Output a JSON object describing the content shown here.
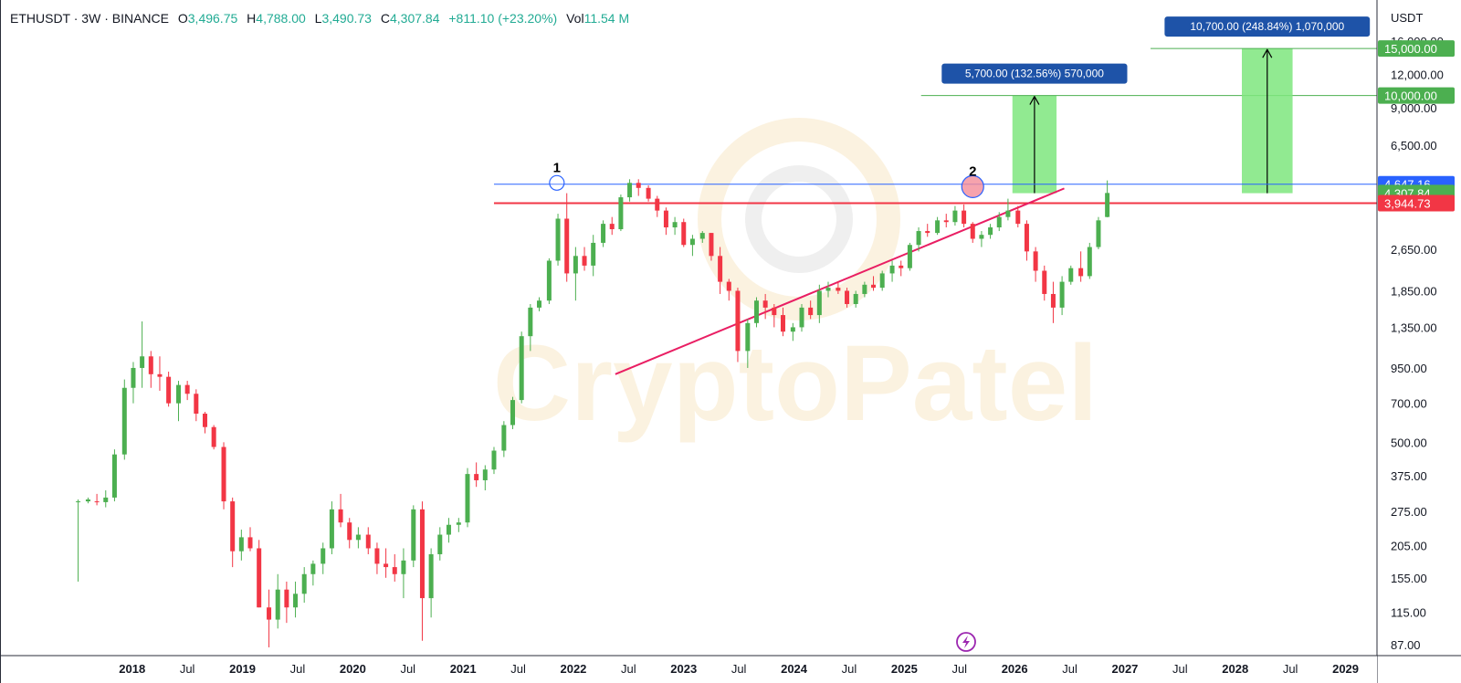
{
  "header": {
    "symbol": "ETHUSDT · 3W · BINANCE",
    "open_label": "O",
    "open": "3,496.75",
    "high_label": "H",
    "high": "4,788.00",
    "low_label": "L",
    "low": "3,490.73",
    "close_label": "C",
    "close": "4,307.84",
    "change": "+811.10 (+23.20%)",
    "vol_label": "Vol",
    "vol": "11.54 M"
  },
  "watermark": "CryptoPatel",
  "colors": {
    "up": "#4caf50",
    "down": "#f23645",
    "blue_line": "#2962ff",
    "red_line": "#f23645",
    "trend_line": "#e91e63",
    "target_fill": "#7ee67e",
    "label_blue": "#1e53a8",
    "label_green": "#4caf50"
  },
  "chart_data": {
    "type": "candlestick",
    "title": "ETHUSDT · 3W · BINANCE",
    "yscale": "log",
    "y_unit": "USDT",
    "y_ticks": [
      87,
      115,
      155,
      205,
      275,
      375,
      500,
      700,
      950,
      1350,
      1850,
      2650,
      6500,
      9000,
      12000,
      16000
    ],
    "y_tick_labels": [
      "87.00",
      "115.00",
      "155.00",
      "205.00",
      "275.00",
      "375.00",
      "500.00",
      "700.00",
      "950.00",
      "1,350.00",
      "1,850.00",
      "2,650.00",
      "6,500.00",
      "9,000.00",
      "12,000.00",
      "16,000.00"
    ],
    "x_ticks": [
      "2018",
      "Jul",
      "2019",
      "Jul",
      "2020",
      "Jul",
      "2021",
      "Jul",
      "2022",
      "Jul",
      "2023",
      "Jul",
      "2024",
      "Jul",
      "2025",
      "Jul",
      "2026",
      "Jul",
      "2027",
      "Jul",
      "2028",
      "Jul",
      "2029"
    ],
    "x_range": [
      2017.55,
      2029.3
    ],
    "price_labels": [
      {
        "text": "15,000.00",
        "value": 15000,
        "kind": "green"
      },
      {
        "text": "10,000.00",
        "value": 10000,
        "kind": "green"
      },
      {
        "text": "4,647.16",
        "value": 4647.16,
        "kind": "blue"
      },
      {
        "text": "4,307.84",
        "value": 4307.84,
        "kind": "green"
      },
      {
        "text": "3,944.73",
        "value": 3944.73,
        "kind": "red"
      }
    ],
    "horizontal_lines": [
      {
        "name": "resistance-top",
        "value": 4647,
        "color": "blue",
        "from": 2021.28
      },
      {
        "name": "resistance",
        "value": 3945,
        "color": "red",
        "from": 2021.28
      }
    ],
    "trendline": {
      "from": [
        2022.38,
        900
      ],
      "to": [
        2026.45,
        4480
      ]
    },
    "pivots": [
      {
        "label": "1",
        "x": 2021.85,
        "y": 4700
      },
      {
        "label": "2",
        "x": 2025.62,
        "y": 4550
      }
    ],
    "targets": [
      {
        "text": "5,700.00 (132.56%) 570,000",
        "x0": 2025.98,
        "x1": 2026.38,
        "base": 4300,
        "top": 10000
      },
      {
        "text": "10,700.00 (248.84%) 1,070,000",
        "x0": 2028.06,
        "x1": 2028.52,
        "base": 4300,
        "top": 15000
      }
    ],
    "candles": [
      [
        2017.51,
        300,
        305,
        150,
        300
      ],
      [
        2017.6,
        300,
        310,
        295,
        305
      ],
      [
        2017.68,
        300,
        320,
        290,
        298
      ],
      [
        2017.76,
        298,
        330,
        285,
        310
      ],
      [
        2017.84,
        310,
        470,
        300,
        450
      ],
      [
        2017.93,
        450,
        860,
        430,
        800
      ],
      [
        2018.01,
        800,
        1000,
        700,
        950
      ],
      [
        2018.09,
        950,
        1420,
        800,
        1050
      ],
      [
        2018.17,
        1050,
        1100,
        800,
        900
      ],
      [
        2018.25,
        900,
        1050,
        780,
        880
      ],
      [
        2018.33,
        880,
        920,
        680,
        700
      ],
      [
        2018.42,
        700,
        850,
        600,
        820
      ],
      [
        2018.5,
        820,
        850,
        720,
        760
      ],
      [
        2018.58,
        760,
        790,
        600,
        640
      ],
      [
        2018.66,
        640,
        650,
        540,
        570
      ],
      [
        2018.74,
        570,
        580,
        470,
        480
      ],
      [
        2018.83,
        480,
        500,
        280,
        300
      ],
      [
        2018.91,
        300,
        310,
        170,
        195
      ],
      [
        2018.99,
        195,
        235,
        180,
        220
      ],
      [
        2019.07,
        220,
        240,
        195,
        200
      ],
      [
        2019.15,
        200,
        215,
        120,
        120
      ],
      [
        2019.24,
        120,
        140,
        85,
        108
      ],
      [
        2019.32,
        108,
        160,
        100,
        140
      ],
      [
        2019.4,
        140,
        150,
        105,
        120
      ],
      [
        2019.48,
        120,
        150,
        110,
        135
      ],
      [
        2019.56,
        135,
        170,
        125,
        160
      ],
      [
        2019.64,
        160,
        180,
        145,
        175
      ],
      [
        2019.73,
        175,
        210,
        160,
        200
      ],
      [
        2019.81,
        200,
        300,
        190,
        280
      ],
      [
        2019.89,
        280,
        320,
        240,
        250
      ],
      [
        2019.97,
        250,
        260,
        200,
        215
      ],
      [
        2020.05,
        215,
        240,
        200,
        225
      ],
      [
        2020.14,
        225,
        240,
        190,
        200
      ],
      [
        2020.22,
        200,
        210,
        160,
        175
      ],
      [
        2020.3,
        175,
        200,
        155,
        170
      ],
      [
        2020.38,
        170,
        190,
        150,
        160
      ],
      [
        2020.46,
        160,
        200,
        130,
        180
      ],
      [
        2020.55,
        180,
        290,
        170,
        280
      ],
      [
        2020.63,
        280,
        300,
        90,
        130
      ],
      [
        2020.71,
        130,
        200,
        110,
        190
      ],
      [
        2020.79,
        190,
        240,
        180,
        225
      ],
      [
        2020.87,
        225,
        260,
        210,
        245
      ],
      [
        2020.96,
        245,
        260,
        230,
        250
      ],
      [
        2021.04,
        250,
        400,
        240,
        380
      ],
      [
        2021.12,
        380,
        420,
        340,
        360
      ],
      [
        2021.2,
        360,
        410,
        330,
        395
      ],
      [
        2021.28,
        395,
        480,
        380,
        465
      ],
      [
        2021.37,
        465,
        600,
        440,
        580
      ],
      [
        2021.45,
        580,
        740,
        560,
        720
      ],
      [
        2021.53,
        720,
        1300,
        700,
        1250
      ],
      [
        2021.61,
        1250,
        1650,
        1100,
        1600
      ],
      [
        2021.69,
        1600,
        1750,
        1550,
        1700
      ],
      [
        2021.78,
        1700,
        2450,
        1650,
        2400
      ],
      [
        2021.86,
        2400,
        3600,
        2300,
        3450
      ],
      [
        2021.94,
        3450,
        4300,
        2000,
        2150
      ],
      [
        2022.02,
        2150,
        2700,
        1700,
        2500
      ],
      [
        2022.1,
        2500,
        2700,
        2200,
        2300
      ],
      [
        2022.18,
        2300,
        3000,
        2100,
        2800
      ],
      [
        2022.27,
        2800,
        3400,
        2700,
        3300
      ],
      [
        2022.35,
        3300,
        3500,
        3000,
        3150
      ],
      [
        2022.43,
        3150,
        4250,
        3100,
        4150
      ],
      [
        2022.51,
        4150,
        4850,
        4000,
        4700
      ],
      [
        2022.59,
        4700,
        4850,
        4200,
        4500
      ],
      [
        2022.68,
        4500,
        4600,
        4000,
        4100
      ],
      [
        2022.76,
        4100,
        4200,
        3500,
        3700
      ],
      [
        2022.84,
        3700,
        3800,
        3000,
        3200
      ],
      [
        2022.92,
        3200,
        3500,
        3000,
        3350
      ],
      [
        2023.0,
        3350,
        3450,
        2700,
        2750
      ],
      [
        2023.08,
        2750,
        3000,
        2500,
        2900
      ],
      [
        2023.17,
        2900,
        3100,
        2800,
        3050
      ],
      [
        2023.25,
        3050,
        3050,
        2400,
        2500
      ],
      [
        2023.33,
        2500,
        2700,
        1800,
        2000
      ],
      [
        2023.41,
        2000,
        2050,
        1700,
        1850
      ],
      [
        2023.49,
        1850,
        1900,
        1000,
        1100
      ],
      [
        2023.58,
        1100,
        1450,
        950,
        1400
      ],
      [
        2023.66,
        1400,
        1750,
        1350,
        1700
      ],
      [
        2023.74,
        1700,
        1800,
        1450,
        1600
      ],
      [
        2023.82,
        1600,
        1650,
        1350,
        1500
      ],
      [
        2023.9,
        1500,
        1600,
        1250,
        1300
      ],
      [
        2023.99,
        1300,
        1400,
        1200,
        1350
      ],
      [
        2024.07,
        1350,
        1650,
        1300,
        1600
      ],
      [
        2024.15,
        1600,
        1700,
        1450,
        1500
      ],
      [
        2024.23,
        1500,
        1950,
        1400,
        1850
      ],
      [
        2024.31,
        1850,
        2000,
        1750,
        1900
      ],
      [
        2024.4,
        1900,
        2000,
        1800,
        1850
      ],
      [
        2024.48,
        1850,
        1900,
        1600,
        1650
      ],
      [
        2024.56,
        1650,
        1850,
        1600,
        1800
      ],
      [
        2024.64,
        1800,
        2000,
        1750,
        1950
      ],
      [
        2024.72,
        1950,
        2100,
        1850,
        1900
      ],
      [
        2024.8,
        1900,
        2200,
        1850,
        2150
      ],
      [
        2024.89,
        2150,
        2400,
        2000,
        2300
      ],
      [
        2024.97,
        2300,
        2400,
        2100,
        2250
      ],
      [
        2025.05,
        2250,
        2800,
        2200,
        2750
      ],
      [
        2025.13,
        2750,
        3200,
        2600,
        3100
      ],
      [
        2025.21,
        3100,
        3300,
        2950,
        3050
      ],
      [
        2025.3,
        3050,
        3500,
        3000,
        3400
      ],
      [
        2025.38,
        3400,
        3600,
        3200,
        3350
      ],
      [
        2025.46,
        3350,
        3850,
        3250,
        3700
      ],
      [
        2025.54,
        3700,
        3900,
        3200,
        3300
      ],
      [
        2025.62,
        3300,
        3350,
        2800,
        2900
      ],
      [
        2025.7,
        2900,
        3100,
        2700,
        3000
      ],
      [
        2025.78,
        3000,
        3300,
        2900,
        3200
      ],
      [
        2025.86,
        3200,
        3650,
        3100,
        3500
      ],
      [
        2025.94,
        3500,
        4100,
        3400,
        3700
      ],
      [
        2026.03,
        3700,
        3850,
        3200,
        3300
      ],
      [
        2026.11,
        3300,
        3400,
        2400,
        2600
      ],
      [
        2026.19,
        2600,
        2700,
        2000,
        2200
      ],
      [
        2026.27,
        2200,
        2300,
        1700,
        1800
      ],
      [
        2026.35,
        1800,
        2000,
        1400,
        1600
      ],
      [
        2026.43,
        1600,
        2100,
        1500,
        2000
      ],
      [
        2026.51,
        2000,
        2300,
        1950,
        2250
      ],
      [
        2026.6,
        2250,
        2600,
        2000,
        2100
      ],
      [
        2026.68,
        2100,
        2800,
        2050,
        2700
      ],
      [
        2026.76,
        2700,
        3500,
        2650,
        3400
      ],
      [
        2026.84,
        3500,
        4800,
        3490,
        4307.84
      ]
    ]
  }
}
